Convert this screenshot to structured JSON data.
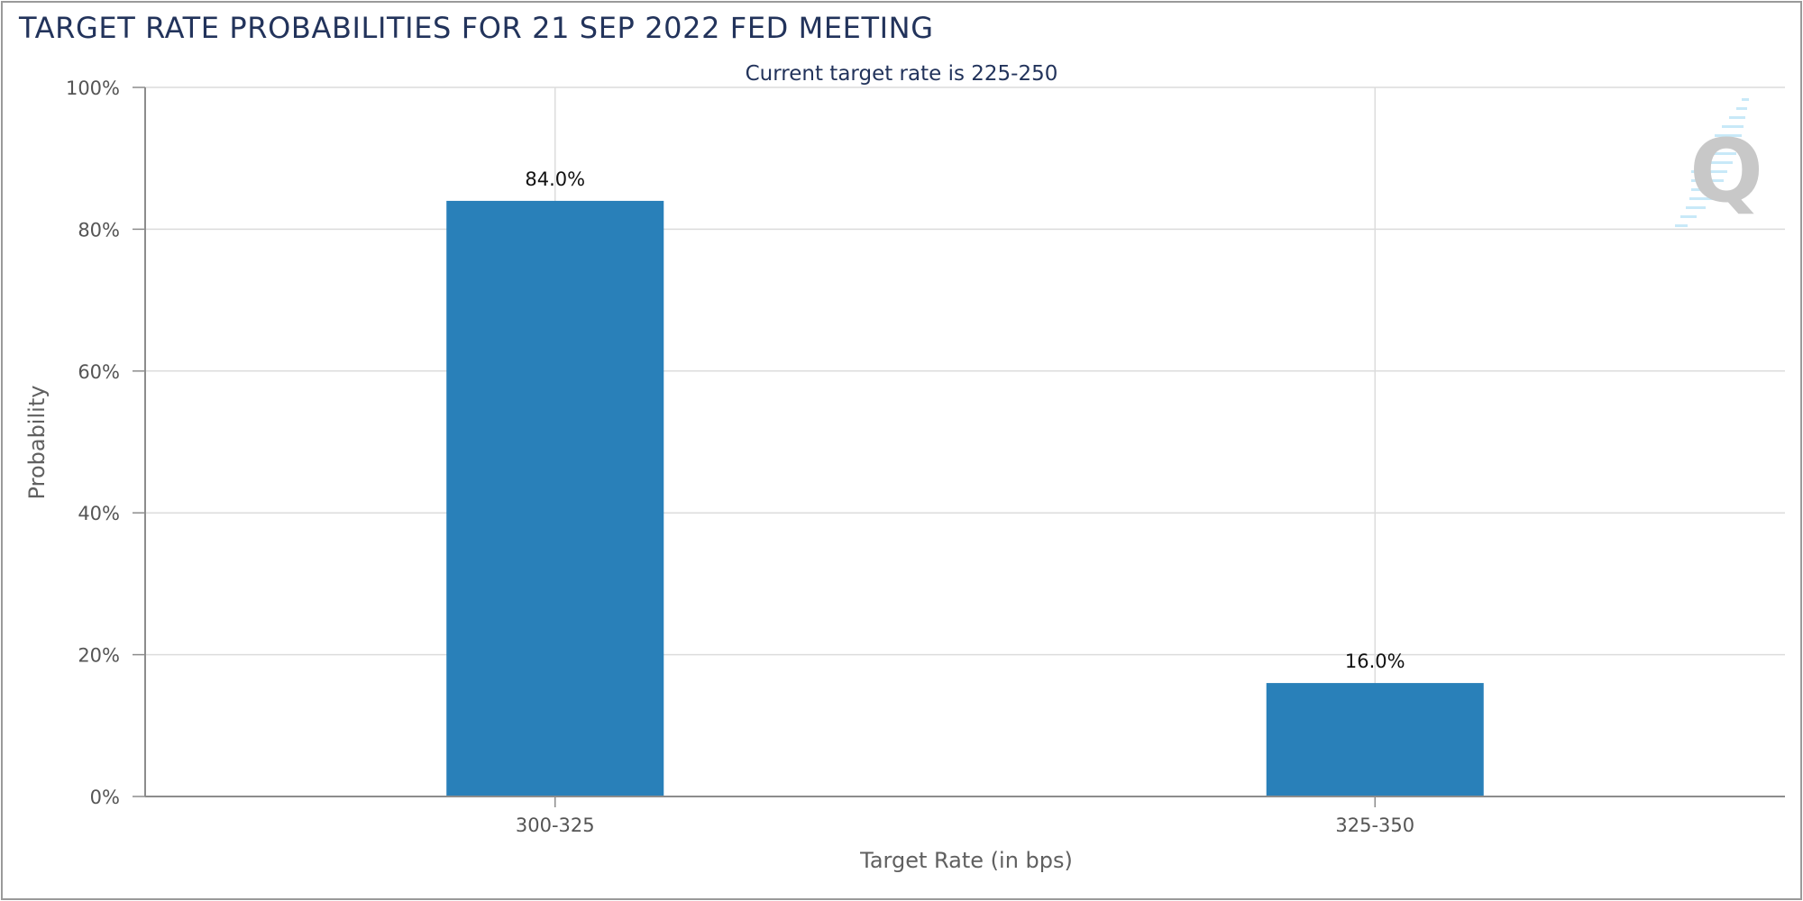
{
  "header": {
    "title": "TARGET RATE PROBABILITIES FOR 21 SEP 2022 FED MEETING"
  },
  "colors": {
    "bar": "#2980b9",
    "title": "#22335b",
    "grid": "#dcdcdc",
    "axis": "#8c8c8c"
  },
  "watermark": {
    "icon": "quikstrike-q-logo-icon",
    "letter": "Q"
  },
  "chart_data": {
    "type": "bar",
    "subtitle": "Current target rate is 225-250",
    "categories": [
      "300-325",
      "325-350"
    ],
    "series": [
      {
        "values": [
          84.0,
          16.0
        ]
      }
    ],
    "data_labels": [
      "84.0%",
      "16.0%"
    ],
    "xlabel": "Target Rate (in bps)",
    "ylabel": "Probability",
    "ylim": [
      0,
      100
    ],
    "yticks": [
      0,
      20,
      40,
      60,
      80,
      100
    ],
    "ytick_labels": [
      "0%",
      "20%",
      "40%",
      "60%",
      "80%",
      "100%"
    ],
    "grid": true,
    "legend": "none"
  }
}
